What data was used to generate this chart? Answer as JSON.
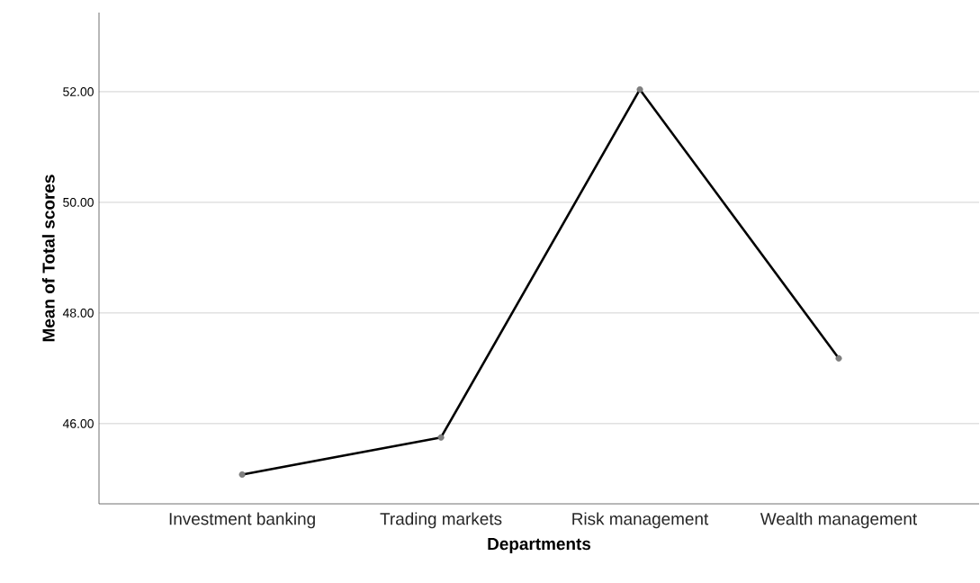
{
  "chart_data": {
    "type": "line",
    "xlabel": "Departments",
    "ylabel": "Mean of Total scores",
    "categories": [
      "Investment banking",
      "Trading markets",
      "Risk management",
      "Wealth management"
    ],
    "values": [
      45.08,
      45.75,
      52.04,
      47.18
    ],
    "color": "#000000",
    "marker": "circle",
    "line_style": "solid",
    "grid": "y",
    "ylim": [
      44.55,
      53.43
    ],
    "yticks": [
      {
        "value": 46,
        "label": "46.00"
      },
      {
        "value": 48,
        "label": "48.00"
      },
      {
        "value": 50,
        "label": "50.00"
      },
      {
        "value": 52,
        "label": "52.00"
      }
    ]
  }
}
